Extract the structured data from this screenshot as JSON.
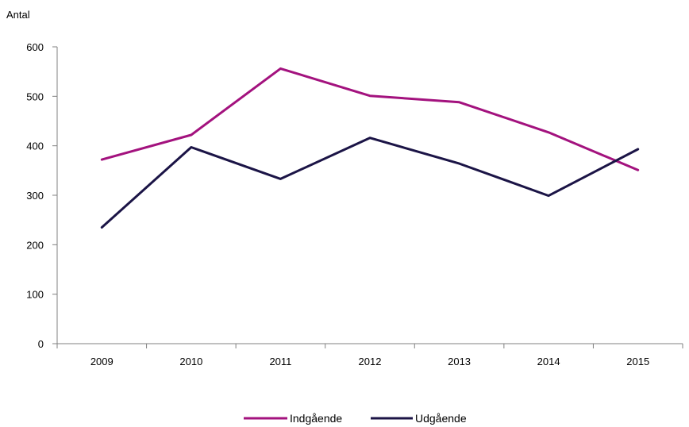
{
  "chart_data": {
    "type": "line",
    "ylabel": "Antal",
    "categories": [
      "2009",
      "2010",
      "2011",
      "2012",
      "2013",
      "2014",
      "2015"
    ],
    "ylim": [
      0,
      600
    ],
    "yticks": [
      0,
      100,
      200,
      300,
      400,
      500,
      600
    ],
    "grid": false,
    "legend_position": "bottom",
    "series": [
      {
        "name": "Indgående",
        "color": "#A3127E",
        "values": [
          372,
          422,
          556,
          501,
          488,
          427,
          351
        ]
      },
      {
        "name": "Udgående",
        "color": "#1B1446",
        "values": [
          235,
          397,
          333,
          416,
          364,
          299,
          393
        ]
      }
    ]
  }
}
